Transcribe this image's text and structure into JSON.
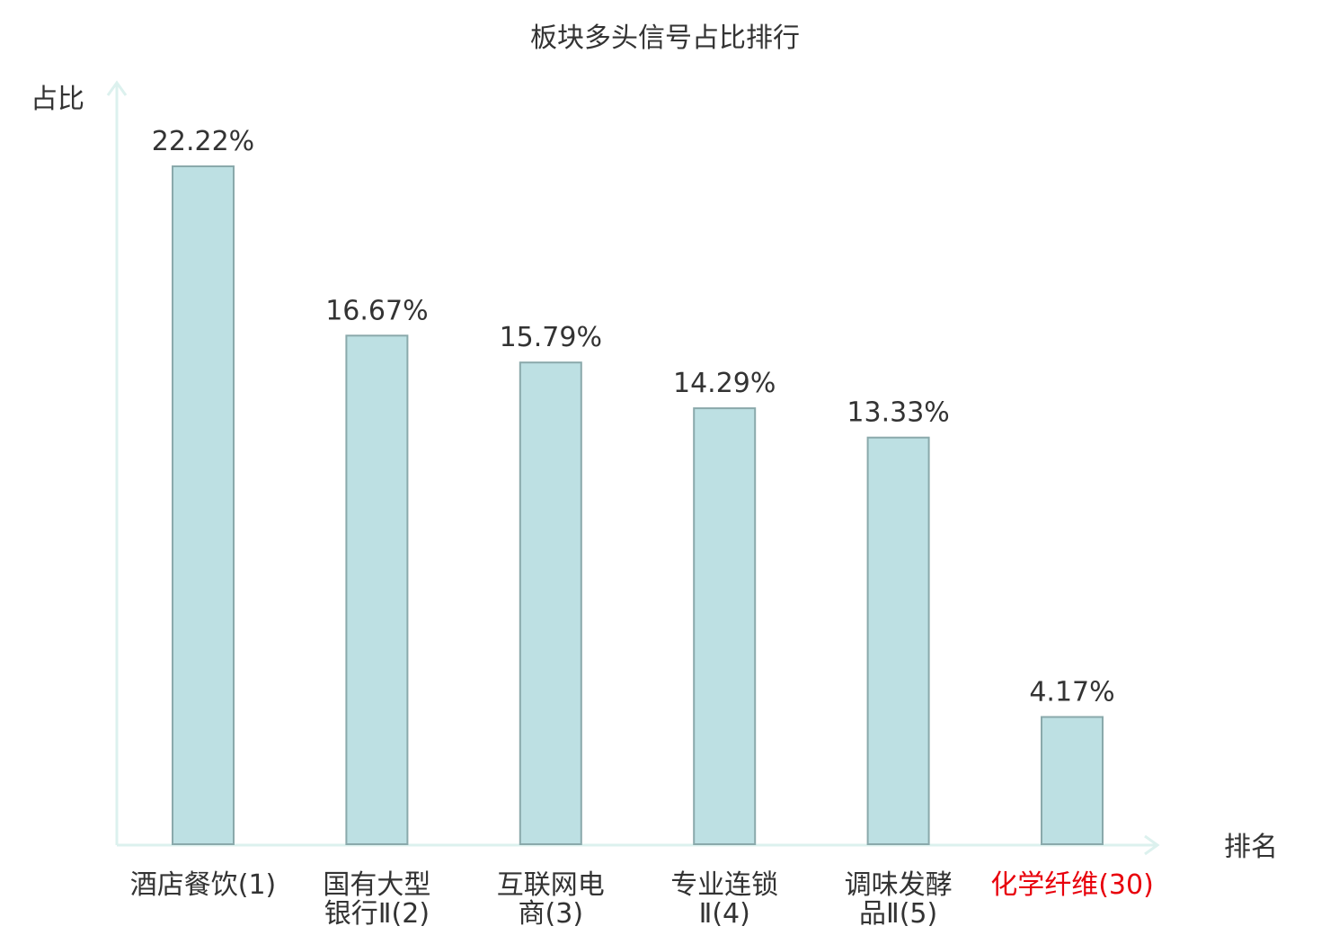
{
  "chart_data": {
    "type": "bar",
    "title": "板块多头信号占比排行",
    "xlabel": "排名",
    "ylabel": "占比",
    "categories": [
      {
        "lines": [
          "酒店餐饮(1)"
        ],
        "highlight": false
      },
      {
        "lines": [
          "国有大型",
          "银行Ⅱ(2)"
        ],
        "highlight": false
      },
      {
        "lines": [
          "互联网电",
          "商(3)"
        ],
        "highlight": false
      },
      {
        "lines": [
          "专业连锁",
          "Ⅱ(4)"
        ],
        "highlight": false
      },
      {
        "lines": [
          "调味发酵",
          "品Ⅱ(5)"
        ],
        "highlight": false
      },
      {
        "lines": [
          "化学纤维(30)"
        ],
        "highlight": true
      }
    ],
    "values": [
      22.22,
      16.67,
      15.79,
      14.29,
      13.33,
      4.17
    ],
    "value_labels": [
      "22.22%",
      "16.67%",
      "15.79%",
      "14.29%",
      "13.33%",
      "4.17%"
    ],
    "ylim": [
      0,
      22.22
    ],
    "grid": false,
    "colors": {
      "bar_fill": "#bde0e3",
      "bar_stroke": "#8aa9ab",
      "axis": "#dcf1ee",
      "text": "#333333",
      "highlight": "#e8000b"
    }
  }
}
